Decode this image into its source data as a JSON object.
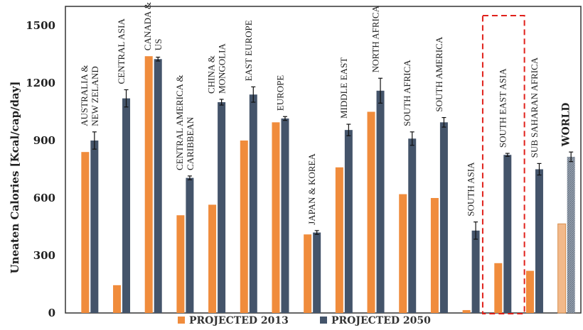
{
  "chart_data": {
    "type": "bar",
    "ylabel": "Uneaten Calories [Kcal/cap/day]",
    "ylim": [
      0,
      1600
    ],
    "yticks": [
      "0",
      "300",
      "600",
      "900",
      "1200",
      "1500"
    ],
    "grid": false,
    "legend_position": "bottom",
    "categories": [
      [
        "AUSTRALIA &",
        "NEW ZELAND"
      ],
      [
        "CENTRAL ASIA"
      ],
      [
        "CANADA &",
        "US"
      ],
      [
        "CENTRAL AMERICA &",
        "CARIBBEAN"
      ],
      [
        "CHINA &",
        "MONGOLIA"
      ],
      [
        "EAST EUROPE"
      ],
      [
        "EUROPE"
      ],
      [
        "JAPAN & KOREA"
      ],
      [
        "MIDDLE EAST"
      ],
      [
        "NORTH AFRICA"
      ],
      [
        "SOUTH AFRICA"
      ],
      [
        "SOUTH AMERICA"
      ],
      [
        "SOUTH ASIA"
      ],
      [
        "SOUTH EAST ASIA"
      ],
      [
        "SUB SAHARAN AFRICA"
      ],
      [
        "WORLD"
      ]
    ],
    "series": [
      {
        "name": "PROJECTED 2013",
        "color": "#f08c3c",
        "values": [
          840,
          145,
          1340,
          510,
          565,
          900,
          995,
          410,
          760,
          1050,
          620,
          600,
          15,
          260,
          220,
          465
        ]
      },
      {
        "name": "PROJECTED 2050",
        "color": "#44546a",
        "values": [
          900,
          1120,
          1325,
          705,
          1100,
          1140,
          1015,
          420,
          955,
          1160,
          910,
          995,
          430,
          825,
          750,
          815
        ],
        "errors": [
          45,
          45,
          10,
          10,
          15,
          40,
          10,
          10,
          30,
          65,
          35,
          25,
          45,
          8,
          30,
          25
        ]
      }
    ],
    "highlight": "SOUTH EAST ASIA"
  }
}
